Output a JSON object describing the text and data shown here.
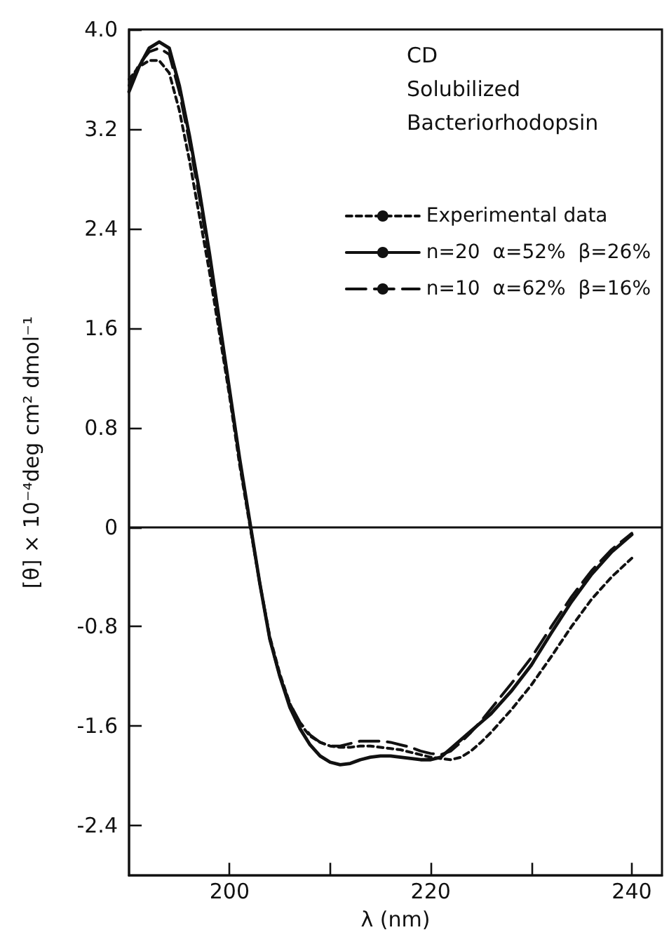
{
  "chart_data": {
    "type": "line",
    "xlabel": "λ (nm)",
    "ylabel": "[θ] × 10⁻⁴deg cm² dmol⁻¹",
    "annotations": [
      "CD",
      "Solubilized",
      "Bacteriorhodopsin"
    ],
    "x": [
      190,
      191,
      192,
      193,
      194,
      195,
      196,
      197,
      198,
      199,
      200,
      201,
      202,
      203,
      204,
      205,
      206,
      207,
      208,
      209,
      210,
      211,
      212,
      213,
      214,
      215,
      216,
      217,
      218,
      219,
      220,
      221,
      222,
      223,
      224,
      225,
      226,
      228,
      230,
      232,
      234,
      236,
      238,
      240
    ],
    "series": [
      {
        "name": "Experimental data",
        "color": "#111111",
        "line_style": "dotted",
        "values": [
          3.6,
          3.7,
          3.75,
          3.75,
          3.65,
          3.35,
          2.95,
          2.5,
          2.05,
          1.55,
          1.05,
          0.5,
          0.02,
          -0.45,
          -0.88,
          -1.18,
          -1.42,
          -1.58,
          -1.68,
          -1.73,
          -1.76,
          -1.77,
          -1.77,
          -1.76,
          -1.76,
          -1.77,
          -1.78,
          -1.79,
          -1.81,
          -1.83,
          -1.85,
          -1.86,
          -1.87,
          -1.85,
          -1.8,
          -1.73,
          -1.65,
          -1.47,
          -1.27,
          -1.04,
          -0.8,
          -0.58,
          -0.4,
          -0.25
        ]
      },
      {
        "name": "n=20  α=52%  β=26%",
        "color": "#111111",
        "line_style": "solid",
        "values": [
          3.5,
          3.7,
          3.85,
          3.9,
          3.85,
          3.55,
          3.15,
          2.7,
          2.2,
          1.65,
          1.1,
          0.55,
          0.05,
          -0.45,
          -0.9,
          -1.2,
          -1.45,
          -1.62,
          -1.75,
          -1.84,
          -1.89,
          -1.91,
          -1.9,
          -1.87,
          -1.85,
          -1.84,
          -1.84,
          -1.85,
          -1.86,
          -1.87,
          -1.87,
          -1.85,
          -1.78,
          -1.71,
          -1.64,
          -1.57,
          -1.5,
          -1.32,
          -1.11,
          -0.85,
          -0.6,
          -0.38,
          -0.2,
          -0.06
        ]
      },
      {
        "name": "n=10  α=62%  β=16%",
        "color": "#111111",
        "line_style": "dashed",
        "values": [
          3.55,
          3.72,
          3.82,
          3.85,
          3.8,
          3.5,
          3.1,
          2.65,
          2.15,
          1.62,
          1.08,
          0.53,
          0.04,
          -0.45,
          -0.9,
          -1.2,
          -1.42,
          -1.57,
          -1.67,
          -1.73,
          -1.76,
          -1.76,
          -1.74,
          -1.72,
          -1.72,
          -1.72,
          -1.73,
          -1.75,
          -1.77,
          -1.8,
          -1.82,
          -1.83,
          -1.8,
          -1.73,
          -1.65,
          -1.56,
          -1.46,
          -1.26,
          -1.05,
          -0.8,
          -0.56,
          -0.35,
          -0.18,
          -0.05
        ]
      }
    ],
    "xlim": [
      190,
      243
    ],
    "xticks": [
      200,
      {
        "value": 210,
        "label": null
      },
      220,
      {
        "value": 230,
        "label": null
      },
      240
    ],
    "ylim": [
      -2.8,
      4.0
    ],
    "yticks": [
      {
        "value": -2.4,
        "label": "-2.4"
      },
      {
        "value": -1.6,
        "label": "-1.6"
      },
      {
        "value": -0.8,
        "label": "-0.8"
      },
      0,
      {
        "value": 0.8,
        "label": "0.8"
      },
      {
        "value": 1.6,
        "label": "1.6"
      },
      {
        "value": 2.4,
        "label": "2.4"
      },
      {
        "value": 3.2,
        "label": "3.2"
      },
      {
        "value": 4,
        "label": "4.0"
      }
    ],
    "ref_lines": [
      {
        "axis": "y",
        "value": 0,
        "color": "#111111",
        "line_style": "solid"
      }
    ],
    "grid": false,
    "legend": "top right",
    "marker": "none"
  }
}
